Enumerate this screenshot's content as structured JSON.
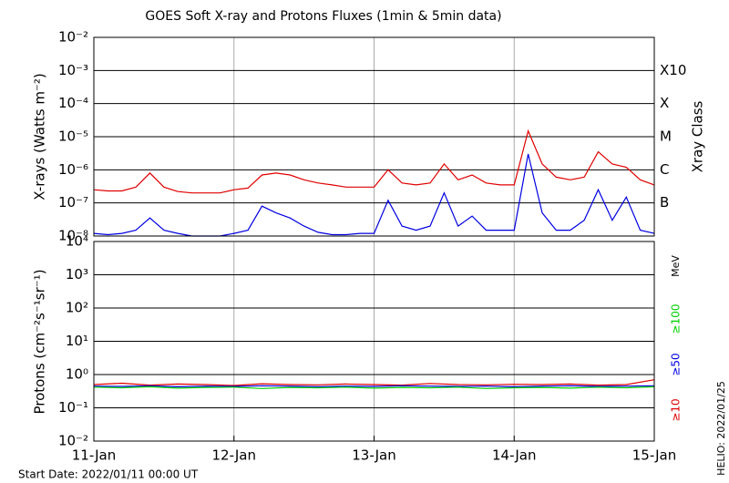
{
  "title": "GOES Soft X-ray and Protons Fluxes   (1min & 5min data)",
  "footer": "Start Date: 2022/01/11 00:00 UT",
  "credit": "HELIO: 2022/01/25",
  "chart_data": [
    {
      "type": "line",
      "y_label": "X-rays (Watts m⁻²)",
      "right_title": "Xray Class",
      "right_labels": [
        {
          "value": 0.001,
          "label": "X10"
        },
        {
          "value": 0.0001,
          "label": "X"
        },
        {
          "value": 1e-05,
          "label": "M"
        },
        {
          "value": 1e-06,
          "label": "C"
        },
        {
          "value": 1e-07,
          "label": "B"
        }
      ],
      "log_y": true,
      "grid": true,
      "xlim": [
        11,
        15
      ],
      "ylim": [
        1e-08,
        0.01
      ],
      "yticks": [
        {
          "value": 1e-08,
          "label": "10⁻⁸"
        },
        {
          "value": 1e-07,
          "label": "10⁻⁷"
        },
        {
          "value": 1e-06,
          "label": "10⁻⁶"
        },
        {
          "value": 1e-05,
          "label": "10⁻⁵"
        },
        {
          "value": 0.0001,
          "label": "10⁻⁴"
        },
        {
          "value": 0.001,
          "label": "10⁻³"
        },
        {
          "value": 0.01,
          "label": "10⁻²"
        }
      ],
      "x": [
        11.0,
        11.1,
        11.2,
        11.3,
        11.4,
        11.5,
        11.6,
        11.7,
        11.8,
        11.9,
        12.0,
        12.1,
        12.2,
        12.3,
        12.4,
        12.5,
        12.6,
        12.7,
        12.8,
        12.9,
        13.0,
        13.1,
        13.2,
        13.3,
        13.4,
        13.5,
        13.6,
        13.7,
        13.8,
        13.9,
        14.0,
        14.1,
        14.2,
        14.3,
        14.4,
        14.5,
        14.6,
        14.7,
        14.8,
        14.9,
        15.0
      ],
      "series": [
        {
          "color": "#e00000",
          "values": [
            2.5e-07,
            2.3e-07,
            2.3e-07,
            3e-07,
            8e-07,
            3e-07,
            2.2e-07,
            2e-07,
            2e-07,
            2e-07,
            2.5e-07,
            2.8e-07,
            7e-07,
            8e-07,
            7e-07,
            5e-07,
            4e-07,
            3.5e-07,
            3e-07,
            3e-07,
            3e-07,
            1e-06,
            4e-07,
            3.5e-07,
            4e-07,
            1.5e-06,
            5e-07,
            7e-07,
            4e-07,
            3.5e-07,
            3.5e-07,
            1.5e-05,
            1.5e-06,
            6e-07,
            5e-07,
            6e-07,
            3.5e-06,
            1.5e-06,
            1.2e-06,
            5e-07,
            3.5e-07
          ]
        },
        {
          "color": "#0000e0",
          "values": [
            1.2e-08,
            1.1e-08,
            1.2e-08,
            1.5e-08,
            3.5e-08,
            1.5e-08,
            1.2e-08,
            1e-08,
            1e-08,
            1e-08,
            1.2e-08,
            1.5e-08,
            8e-08,
            5e-08,
            3.5e-08,
            2e-08,
            1.3e-08,
            1.1e-08,
            1.1e-08,
            1.2e-08,
            1.2e-08,
            1.2e-07,
            2e-08,
            1.5e-08,
            2e-08,
            2e-07,
            2e-08,
            4e-08,
            1.5e-08,
            1.5e-08,
            1.5e-08,
            3e-06,
            5e-08,
            1.5e-08,
            1.5e-08,
            3e-08,
            2.5e-07,
            3e-08,
            1.5e-07,
            1.5e-08,
            1.2e-08
          ]
        }
      ]
    },
    {
      "type": "line",
      "y_label": "Protons (cm⁻²s⁻¹sr⁻¹)",
      "legend_title": "MeV",
      "log_y": true,
      "grid": true,
      "threshold": 10,
      "xlim": [
        11,
        15
      ],
      "xticks": [
        {
          "value": 11,
          "label": "11-Jan"
        },
        {
          "value": 12,
          "label": "12-Jan"
        },
        {
          "value": 13,
          "label": "13-Jan"
        },
        {
          "value": 14,
          "label": "14-Jan"
        },
        {
          "value": 15,
          "label": "15-Jan"
        }
      ],
      "ylim": [
        0.01,
        10000.0
      ],
      "yticks": [
        {
          "value": 0.01,
          "label": "10⁻²"
        },
        {
          "value": 0.1,
          "label": "10⁻¹"
        },
        {
          "value": 1,
          "label": "10⁰"
        },
        {
          "value": 10,
          "label": "10¹"
        },
        {
          "value": 100,
          "label": "10²"
        },
        {
          "value": 1000,
          "label": "10³"
        },
        {
          "value": 10000,
          "label": "10⁴"
        }
      ],
      "x": [
        11.0,
        11.2,
        11.4,
        11.6,
        11.8,
        12.0,
        12.2,
        12.4,
        12.6,
        12.8,
        13.0,
        13.2,
        13.4,
        13.6,
        13.8,
        14.0,
        14.2,
        14.4,
        14.6,
        14.8,
        15.0
      ],
      "series": [
        {
          "name": "≥10",
          "color": "#e00000",
          "values": [
            0.5,
            0.55,
            0.48,
            0.52,
            0.5,
            0.47,
            0.53,
            0.5,
            0.49,
            0.52,
            0.5,
            0.48,
            0.54,
            0.5,
            0.49,
            0.51,
            0.5,
            0.52,
            0.48,
            0.5,
            0.7
          ]
        },
        {
          "name": "≥50",
          "color": "#0000e0",
          "values": [
            0.45,
            0.44,
            0.46,
            0.43,
            0.45,
            0.44,
            0.46,
            0.45,
            0.43,
            0.45,
            0.44,
            0.46,
            0.45,
            0.44,
            0.45,
            0.43,
            0.45,
            0.46,
            0.44,
            0.45,
            0.46
          ]
        },
        {
          "name": "≥100",
          "color": "#00d000",
          "values": [
            0.42,
            0.4,
            0.43,
            0.39,
            0.41,
            0.42,
            0.38,
            0.41,
            0.4,
            0.42,
            0.39,
            0.41,
            0.4,
            0.42,
            0.38,
            0.4,
            0.41,
            0.39,
            0.42,
            0.4,
            0.43
          ]
        }
      ]
    }
  ]
}
